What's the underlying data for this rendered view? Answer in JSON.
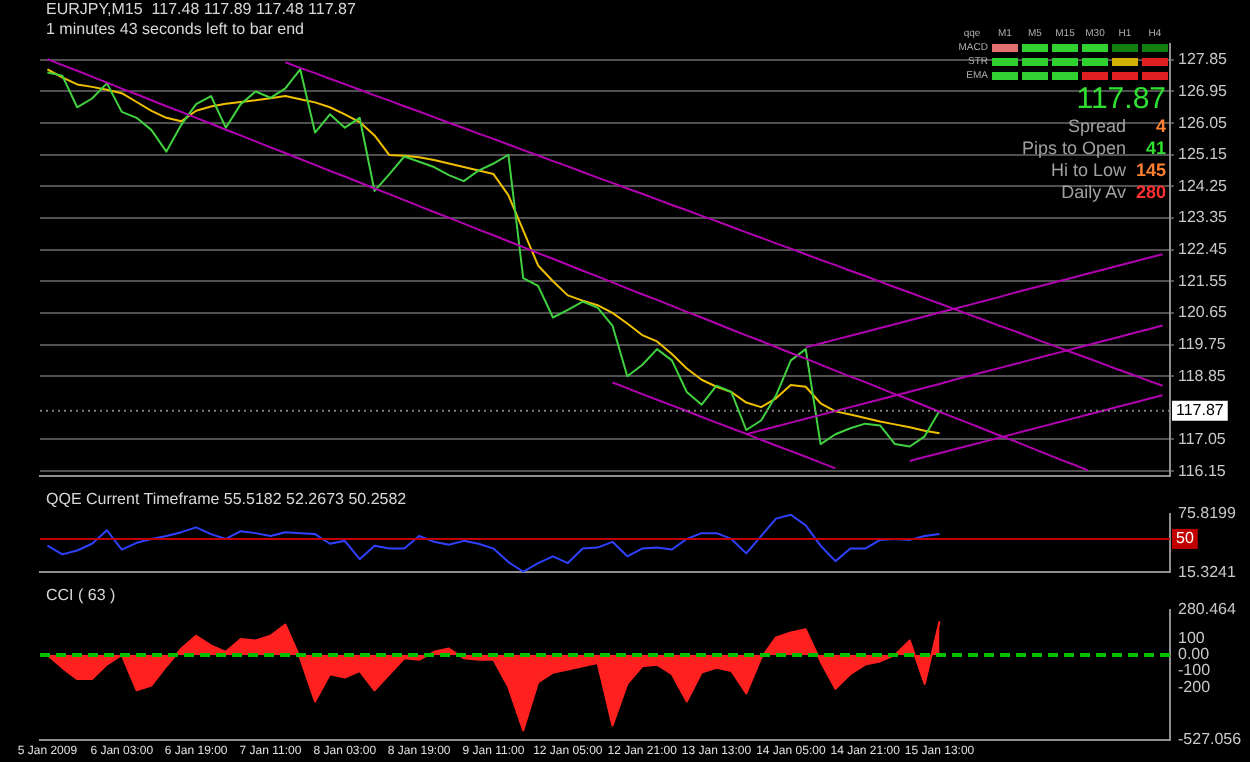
{
  "chart_data": [
    {
      "type": "line",
      "title": "EURJPY,M15  117.48 117.89 117.48 117.87",
      "subtitle": "1 minutes 43 seconds left to bar end",
      "annotations": [
        "qqe",
        "M1",
        "M5",
        "M15",
        "M30",
        "H1",
        "H4",
        "MACD",
        "STR",
        "EMA",
        "117.87",
        "Spread 4",
        "Pips to Open 41",
        "Hi to Low 145",
        "Daily Av 280"
      ],
      "ylim": [
        116.0,
        128.3
      ],
      "yticks": [
        127.85,
        126.95,
        126.05,
        125.15,
        124.25,
        123.35,
        122.45,
        121.55,
        120.65,
        119.75,
        118.85,
        117.05,
        116.15
      ],
      "tick_labels": "y",
      "grid": "y",
      "legend": false,
      "ref_lines": [
        {
          "axis": "y",
          "value": 117.87,
          "label": "117.87",
          "color": "#808080",
          "line_style": "dotted"
        }
      ],
      "series": [
        {
          "color": "#b000b0",
          "values": [
            null,
            null,
            null,
            null,
            null,
            null,
            null,
            null,
            null,
            null,
            null,
            null,
            null,
            null,
            null,
            null,
            127.78,
            127.62,
            127.47,
            127.31,
            127.16,
            127.0,
            126.84,
            126.69,
            126.53,
            126.38,
            126.22,
            126.06,
            125.91,
            125.75,
            125.6,
            125.44,
            125.28,
            125.13,
            124.97,
            124.82,
            124.66,
            124.5,
            124.35,
            124.19,
            124.04,
            123.88,
            123.72,
            123.57,
            123.41,
            123.26,
            123.1,
            122.94,
            122.79,
            122.63,
            122.48,
            122.32,
            122.16,
            122.01,
            121.85,
            121.7,
            121.54,
            121.38,
            121.23,
            121.07,
            120.92,
            120.76,
            120.6,
            120.45,
            120.29,
            120.14,
            119.98,
            119.82,
            119.67,
            119.51,
            119.36,
            119.2,
            119.04,
            118.89,
            118.73,
            118.58
          ]
        },
        {
          "color": "#b000b0",
          "values": [
            127.87,
            127.7,
            127.54,
            127.37,
            127.2,
            127.03,
            126.87,
            126.7,
            126.53,
            126.37,
            126.2,
            126.03,
            125.86,
            125.7,
            125.53,
            125.36,
            125.2,
            125.03,
            124.86,
            124.69,
            124.53,
            124.36,
            124.19,
            124.03,
            123.86,
            123.69,
            123.52,
            123.36,
            123.19,
            123.02,
            122.86,
            122.69,
            122.52,
            122.35,
            122.19,
            122.02,
            121.85,
            121.69,
            121.52,
            121.35,
            121.18,
            121.02,
            120.85,
            120.68,
            120.52,
            120.35,
            120.18,
            120.01,
            119.85,
            119.68,
            119.51,
            119.35,
            119.18,
            119.01,
            118.84,
            118.68,
            118.51,
            118.34,
            118.18,
            118.01,
            117.84,
            117.67,
            117.51,
            117.34,
            117.17,
            117.01,
            116.84,
            116.67,
            116.5,
            116.34,
            116.17,
            null,
            null,
            null,
            null,
            null
          ]
        },
        {
          "color": "#b000b0",
          "values": [
            null,
            null,
            null,
            null,
            null,
            null,
            null,
            null,
            null,
            null,
            null,
            null,
            null,
            null,
            null,
            null,
            null,
            null,
            null,
            null,
            null,
            null,
            null,
            null,
            null,
            null,
            null,
            null,
            null,
            null,
            null,
            null,
            null,
            null,
            null,
            null,
            null,
            null,
            118.67,
            118.51,
            118.34,
            118.18,
            118.02,
            117.86,
            117.69,
            117.53,
            117.37,
            117.21,
            117.04,
            116.88,
            116.72,
            116.56,
            116.39,
            116.23,
            null,
            null,
            null,
            null,
            null,
            null,
            null,
            null,
            null,
            null,
            null,
            null,
            null,
            null,
            null,
            null,
            null,
            null,
            null,
            null,
            null,
            null
          ]
        },
        {
          "color": "#b000b0",
          "values": [
            null,
            null,
            null,
            null,
            null,
            null,
            null,
            null,
            null,
            null,
            null,
            null,
            null,
            null,
            null,
            null,
            null,
            null,
            null,
            null,
            null,
            null,
            null,
            null,
            null,
            null,
            null,
            null,
            null,
            null,
            null,
            null,
            null,
            null,
            null,
            null,
            null,
            null,
            null,
            null,
            null,
            null,
            null,
            null,
            null,
            null,
            null,
            null,
            null,
            null,
            null,
            119.67,
            119.78,
            119.89,
            120.0,
            120.11,
            120.22,
            120.33,
            120.44,
            120.55,
            120.66,
            120.77,
            120.88,
            120.99,
            121.1,
            121.22,
            121.33,
            121.44,
            121.55,
            121.66,
            121.77,
            121.88,
            121.99,
            122.1,
            122.21,
            122.32
          ]
        },
        {
          "color": "#b000b0",
          "values": [
            null,
            null,
            null,
            null,
            null,
            null,
            null,
            null,
            null,
            null,
            null,
            null,
            null,
            null,
            null,
            null,
            null,
            null,
            null,
            null,
            null,
            null,
            null,
            null,
            null,
            null,
            null,
            null,
            null,
            null,
            null,
            null,
            null,
            null,
            null,
            null,
            null,
            null,
            null,
            null,
            null,
            null,
            null,
            null,
            null,
            null,
            null,
            117.2,
            117.31,
            117.42,
            117.53,
            117.64,
            117.75,
            117.86,
            117.97,
            118.08,
            118.19,
            118.3,
            118.41,
            118.52,
            118.63,
            118.75,
            118.86,
            118.97,
            119.08,
            119.19,
            119.3,
            119.41,
            119.52,
            119.63,
            119.74,
            119.85,
            119.96,
            120.07,
            120.18,
            120.29
          ]
        },
        {
          "color": "#b000b0",
          "values": [
            null,
            null,
            null,
            null,
            null,
            null,
            null,
            null,
            null,
            null,
            null,
            null,
            null,
            null,
            null,
            null,
            null,
            null,
            null,
            null,
            null,
            null,
            null,
            null,
            null,
            null,
            null,
            null,
            null,
            null,
            null,
            null,
            null,
            null,
            null,
            null,
            null,
            null,
            null,
            null,
            null,
            null,
            null,
            null,
            null,
            null,
            null,
            null,
            null,
            null,
            null,
            null,
            null,
            null,
            null,
            null,
            null,
            null,
            116.44,
            116.55,
            116.66,
            116.77,
            116.88,
            116.99,
            117.1,
            117.21,
            117.32,
            117.43,
            117.54,
            117.65,
            117.76,
            117.87,
            117.98,
            118.09,
            118.2,
            118.31
          ]
        },
        {
          "color": "#40d040",
          "values": [
            127.49,
            127.4,
            126.5,
            126.75,
            127.18,
            126.37,
            126.2,
            125.85,
            125.24,
            126.0,
            126.59,
            126.82,
            125.92,
            126.59,
            126.95,
            126.77,
            127.04,
            127.58,
            125.78,
            126.3,
            125.92,
            126.2,
            124.12,
            124.6,
            125.1,
            124.95,
            124.8,
            124.57,
            124.4,
            124.7,
            124.9,
            125.15,
            121.64,
            121.42,
            120.52,
            120.74,
            120.97,
            120.8,
            120.29,
            118.85,
            119.17,
            119.62,
            119.3,
            118.4,
            118.04,
            118.58,
            118.4,
            117.32,
            117.59,
            118.3,
            119.3,
            119.62,
            116.92,
            117.2,
            117.37,
            117.5,
            117.45,
            116.92,
            116.85,
            117.14,
            117.87,
            null,
            null,
            null,
            null,
            null,
            null,
            null,
            null,
            null,
            null,
            null,
            null,
            null,
            null,
            null
          ]
        },
        {
          "color": "#f0c000",
          "values": [
            127.58,
            127.35,
            127.15,
            127.08,
            127.0,
            126.9,
            126.65,
            126.4,
            126.2,
            126.1,
            126.4,
            126.52,
            126.6,
            126.65,
            126.7,
            126.76,
            126.82,
            126.73,
            126.64,
            126.5,
            126.3,
            126.08,
            125.7,
            125.14,
            125.12,
            125.08,
            125.0,
            124.9,
            124.8,
            124.7,
            124.6,
            124.0,
            123.0,
            122.0,
            121.55,
            121.15,
            121.0,
            120.87,
            120.65,
            120.35,
            120.02,
            119.84,
            119.48,
            119.07,
            118.75,
            118.55,
            118.4,
            118.1,
            117.97,
            118.22,
            118.6,
            118.55,
            118.08,
            117.85,
            117.76,
            117.66,
            117.56,
            117.48,
            117.4,
            117.3,
            117.23,
            null,
            null,
            null,
            null,
            null,
            null,
            null,
            null,
            null,
            null,
            null,
            null,
            null,
            null,
            null
          ]
        }
      ]
    },
    {
      "type": "line",
      "title": "QQE Current Timeframe 55.5182 52.2673 50.2582",
      "ylim": [
        15.3241,
        75.8199
      ],
      "yticks": [
        75.8199,
        15.3241
      ],
      "tick_labels": "y",
      "legend": false,
      "ref_lines": [
        {
          "axis": "y",
          "value": 50,
          "label": "50",
          "color": "#c00000",
          "line_style": "solid"
        }
      ],
      "series": [
        {
          "color": "#3040ff",
          "values": [
            43,
            34,
            38,
            45,
            59,
            39,
            46,
            50,
            53,
            57,
            62,
            55,
            50,
            58,
            56,
            53,
            57,
            56,
            55,
            45,
            48,
            29,
            43,
            40,
            40,
            53,
            47,
            44,
            48,
            45,
            40,
            26,
            16,
            25,
            32,
            25,
            40,
            41,
            47,
            32,
            40,
            41,
            39,
            50,
            56,
            56,
            50,
            35,
            53,
            71,
            75,
            64,
            43,
            27,
            40,
            40,
            49,
            50,
            49,
            53,
            55,
            null,
            null,
            null,
            null,
            null,
            null,
            null,
            null,
            null,
            null,
            null,
            null,
            null,
            null,
            null
          ]
        }
      ]
    },
    {
      "type": "area",
      "title": "CCI ( 63 )",
      "categories": [
        "5 Jan 2009",
        null,
        null,
        null,
        null,
        "6 Jan 03:00",
        null,
        null,
        null,
        null,
        "6 Jan 19:00",
        null,
        null,
        null,
        null,
        "7 Jan 11:00",
        null,
        null,
        null,
        null,
        "8 Jan 03:00",
        null,
        null,
        null,
        null,
        "8 Jan 19:00",
        null,
        null,
        null,
        null,
        "9 Jan 11:00",
        null,
        null,
        null,
        null,
        "12 Jan 05:00",
        null,
        null,
        null,
        null,
        "12 Jan 21:00",
        null,
        null,
        null,
        null,
        "13 Jan 13:00",
        null,
        null,
        null,
        null,
        "14 Jan 05:00",
        null,
        null,
        null,
        null,
        "14 Jan 21:00",
        null,
        null,
        null,
        null,
        "15 Jan 13:00",
        null,
        null,
        null,
        null,
        null,
        null,
        null,
        null,
        null,
        null,
        null,
        null,
        null,
        null,
        null
      ],
      "ylim": [
        -527.056,
        280.464
      ],
      "yticks": [
        280.464,
        100,
        {
          "value": 0,
          "label": "0.00"
        },
        -100,
        -200,
        -527.056
      ],
      "legend": false,
      "ref_lines": [
        {
          "axis": "y",
          "value": 0,
          "color": "#00c000",
          "line_style": "dashed"
        }
      ],
      "series": [
        {
          "color": "#ff2020",
          "values": [
            0,
            -80,
            -150,
            -150,
            -60,
            0,
            -220,
            -190,
            -70,
            40,
            120,
            60,
            20,
            100,
            90,
            120,
            190,
            -20,
            -290,
            -120,
            -140,
            -100,
            -220,
            -120,
            -20,
            -30,
            20,
            40,
            -20,
            -30,
            -30,
            -200,
            -470,
            -170,
            -110,
            -90,
            -70,
            -50,
            -440,
            -180,
            -70,
            -60,
            -120,
            -290,
            -110,
            -80,
            -100,
            -240,
            -20,
            110,
            140,
            160,
            -40,
            -210,
            -120,
            -60,
            -40,
            0,
            90,
            -180,
            210,
            null,
            null,
            null,
            null,
            null,
            null,
            null,
            null,
            null,
            null,
            null,
            null,
            null,
            null,
            null
          ]
        }
      ]
    }
  ]
}
